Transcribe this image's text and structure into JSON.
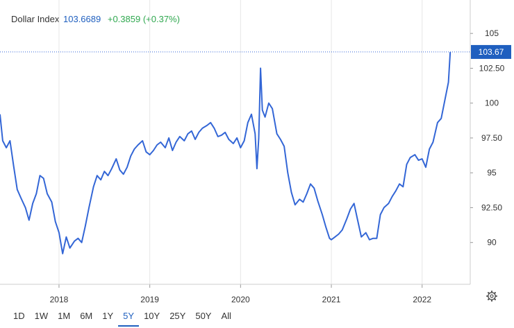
{
  "header": {
    "name": "Dollar Index",
    "value": "103.6689",
    "change": "+0.3859 (+0.37%)"
  },
  "colors": {
    "line": "#3366d6",
    "accent": "#1f5fbf",
    "positive": "#2fa84f",
    "grid": "#e6e6e6"
  },
  "ranges": [
    "1D",
    "1W",
    "1M",
    "6M",
    "1Y",
    "5Y",
    "10Y",
    "25Y",
    "50Y",
    "All"
  ],
  "active_range": "5Y",
  "settings_icon": "gear-icon",
  "chart_data": {
    "type": "line",
    "title": "Dollar Index",
    "series": [
      {
        "name": "Dollar Index",
        "x": [
          2017.35,
          2017.38,
          2017.42,
          2017.46,
          2017.5,
          2017.54,
          2017.58,
          2017.63,
          2017.67,
          2017.71,
          2017.75,
          2017.79,
          2017.83,
          2017.87,
          2017.92,
          2017.96,
          2018.0,
          2018.04,
          2018.08,
          2018.12,
          2018.17,
          2018.21,
          2018.25,
          2018.29,
          2018.33,
          2018.38,
          2018.42,
          2018.46,
          2018.5,
          2018.54,
          2018.58,
          2018.63,
          2018.67,
          2018.71,
          2018.75,
          2018.79,
          2018.83,
          2018.87,
          2018.92,
          2018.96,
          2019.0,
          2019.04,
          2019.08,
          2019.12,
          2019.17,
          2019.21,
          2019.25,
          2019.29,
          2019.33,
          2019.38,
          2019.42,
          2019.46,
          2019.5,
          2019.54,
          2019.58,
          2019.63,
          2019.67,
          2019.71,
          2019.75,
          2019.79,
          2019.83,
          2019.87,
          2019.92,
          2019.96,
          2020.0,
          2020.04,
          2020.08,
          2020.12,
          2020.16,
          2020.18,
          2020.2,
          2020.22,
          2020.24,
          2020.27,
          2020.31,
          2020.35,
          2020.4,
          2020.44,
          2020.48,
          2020.52,
          2020.56,
          2020.6,
          2020.65,
          2020.69,
          2020.73,
          2020.77,
          2020.81,
          2020.85,
          2020.9,
          2020.94,
          2020.98,
          2021.0,
          2021.04,
          2021.08,
          2021.12,
          2021.17,
          2021.21,
          2021.25,
          2021.29,
          2021.33,
          2021.38,
          2021.42,
          2021.46,
          2021.5,
          2021.54,
          2021.58,
          2021.63,
          2021.67,
          2021.71,
          2021.75,
          2021.79,
          2021.83,
          2021.87,
          2021.92,
          2021.96,
          2022.0,
          2022.04,
          2022.08,
          2022.12,
          2022.17,
          2022.21,
          2022.25,
          2022.29,
          2022.31
        ],
        "values": [
          99.2,
          97.3,
          96.8,
          97.3,
          95.5,
          93.8,
          93.2,
          92.5,
          91.6,
          92.8,
          93.5,
          94.8,
          94.6,
          93.5,
          92.9,
          91.5,
          90.7,
          89.2,
          90.4,
          89.6,
          90.1,
          90.3,
          90.0,
          91.2,
          92.5,
          94.0,
          94.8,
          94.5,
          95.1,
          94.8,
          95.3,
          96.0,
          95.2,
          94.9,
          95.4,
          96.2,
          96.7,
          97.0,
          97.3,
          96.5,
          96.3,
          96.6,
          97.0,
          97.2,
          96.8,
          97.5,
          96.6,
          97.2,
          97.6,
          97.3,
          97.8,
          98.0,
          97.4,
          97.9,
          98.2,
          98.4,
          98.6,
          98.2,
          97.6,
          97.7,
          97.9,
          97.4,
          97.1,
          97.5,
          96.8,
          97.3,
          98.6,
          99.2,
          97.8,
          95.3,
          97.5,
          102.5,
          99.5,
          99.0,
          100.0,
          99.6,
          97.8,
          97.4,
          96.9,
          95.0,
          93.6,
          92.7,
          93.1,
          92.9,
          93.5,
          94.2,
          93.9,
          93.0,
          92.0,
          91.1,
          90.3,
          90.2,
          90.4,
          90.6,
          90.9,
          91.7,
          92.4,
          92.8,
          91.6,
          90.4,
          90.7,
          90.2,
          90.3,
          90.3,
          92.0,
          92.5,
          92.8,
          93.3,
          93.7,
          94.2,
          94.0,
          95.6,
          96.1,
          96.3,
          95.9,
          96.0,
          95.4,
          96.7,
          97.2,
          98.6,
          98.9,
          100.2,
          101.5,
          103.67
        ]
      }
    ],
    "x_tick_labels": [
      "2018",
      "2019",
      "2020",
      "2021",
      "2022"
    ],
    "x_ticks": [
      2018.0,
      2019.0,
      2020.0,
      2021.0,
      2022.0
    ],
    "y_tick_labels": [
      "90",
      "92.50",
      "95",
      "97.50",
      "100",
      "102.50",
      "105"
    ],
    "y_ticks": [
      90,
      92.5,
      95,
      97.5,
      100,
      102.5,
      105
    ],
    "xlim": [
      2017.35,
      2022.53
    ],
    "ylim": [
      87,
      107
    ],
    "last_value_label": "103.67",
    "last_value": 103.67,
    "grid": "vertical-lines-at-year-ticks",
    "axis_position": "right"
  }
}
